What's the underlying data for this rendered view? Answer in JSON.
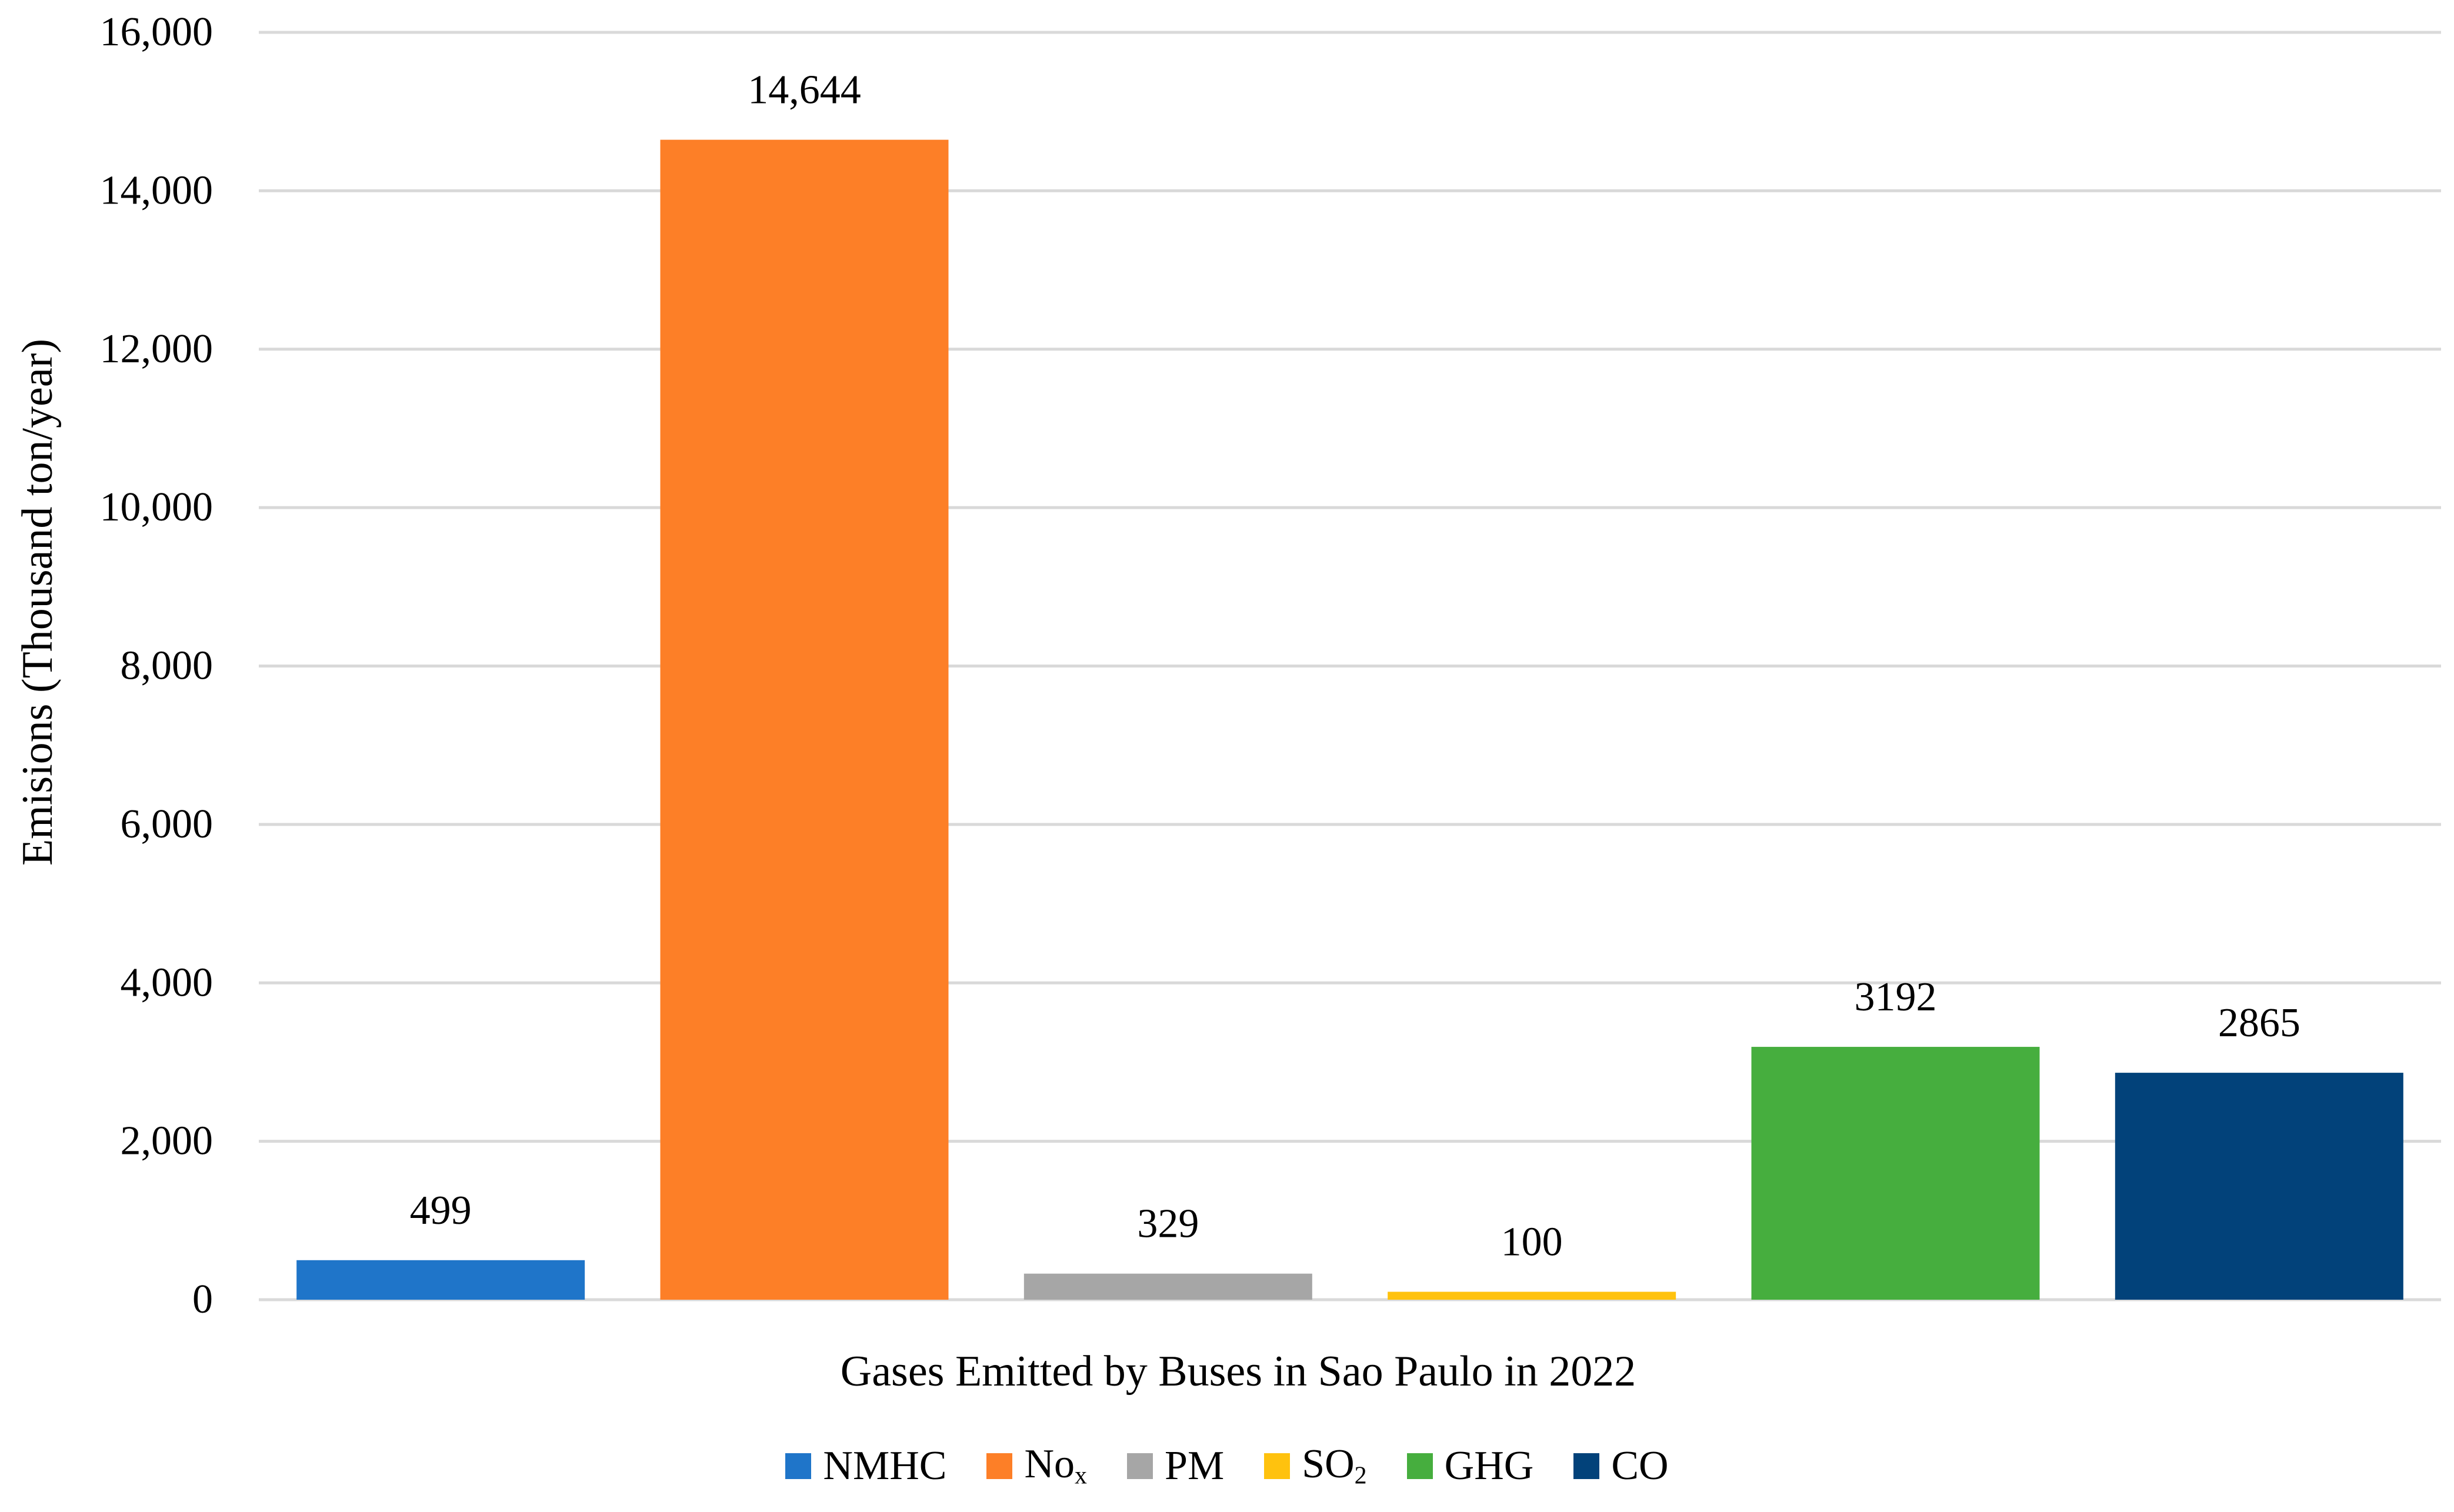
{
  "chart_data": {
    "type": "bar",
    "xlabel": "Gases Emitted by Buses in Sao Paulo in 2022",
    "ylabel": "Emisions (Thousand ton/year)",
    "ylim": [
      0,
      16000
    ],
    "yticks": [
      "0",
      "2,000",
      "4,000",
      "6,000",
      "8,000",
      "10,000",
      "12,000",
      "14,000",
      "16,000"
    ],
    "grid": true,
    "legend_position": "bottom",
    "series": [
      {
        "name": "NMHC",
        "base": "NMHC",
        "sub": "",
        "value": 499,
        "label": "499",
        "color": "#1f75c9"
      },
      {
        "name": "Nox",
        "base": "No",
        "sub": "x",
        "value": 14644,
        "label": "14,644",
        "color": "#fd7f27"
      },
      {
        "name": "PM",
        "base": "PM",
        "sub": "",
        "value": 329,
        "label": "329",
        "color": "#a6a6a6"
      },
      {
        "name": "SO2",
        "base": "SO",
        "sub": "2",
        "value": 100,
        "label": "100",
        "color": "#ffc20e"
      },
      {
        "name": "GHG",
        "base": "GHG",
        "sub": "",
        "value": 3192,
        "label": "3192",
        "color": "#46ae3e"
      },
      {
        "name": "CO",
        "base": "CO",
        "sub": "",
        "value": 2865,
        "label": "2865",
        "color": "#02427a"
      }
    ]
  }
}
